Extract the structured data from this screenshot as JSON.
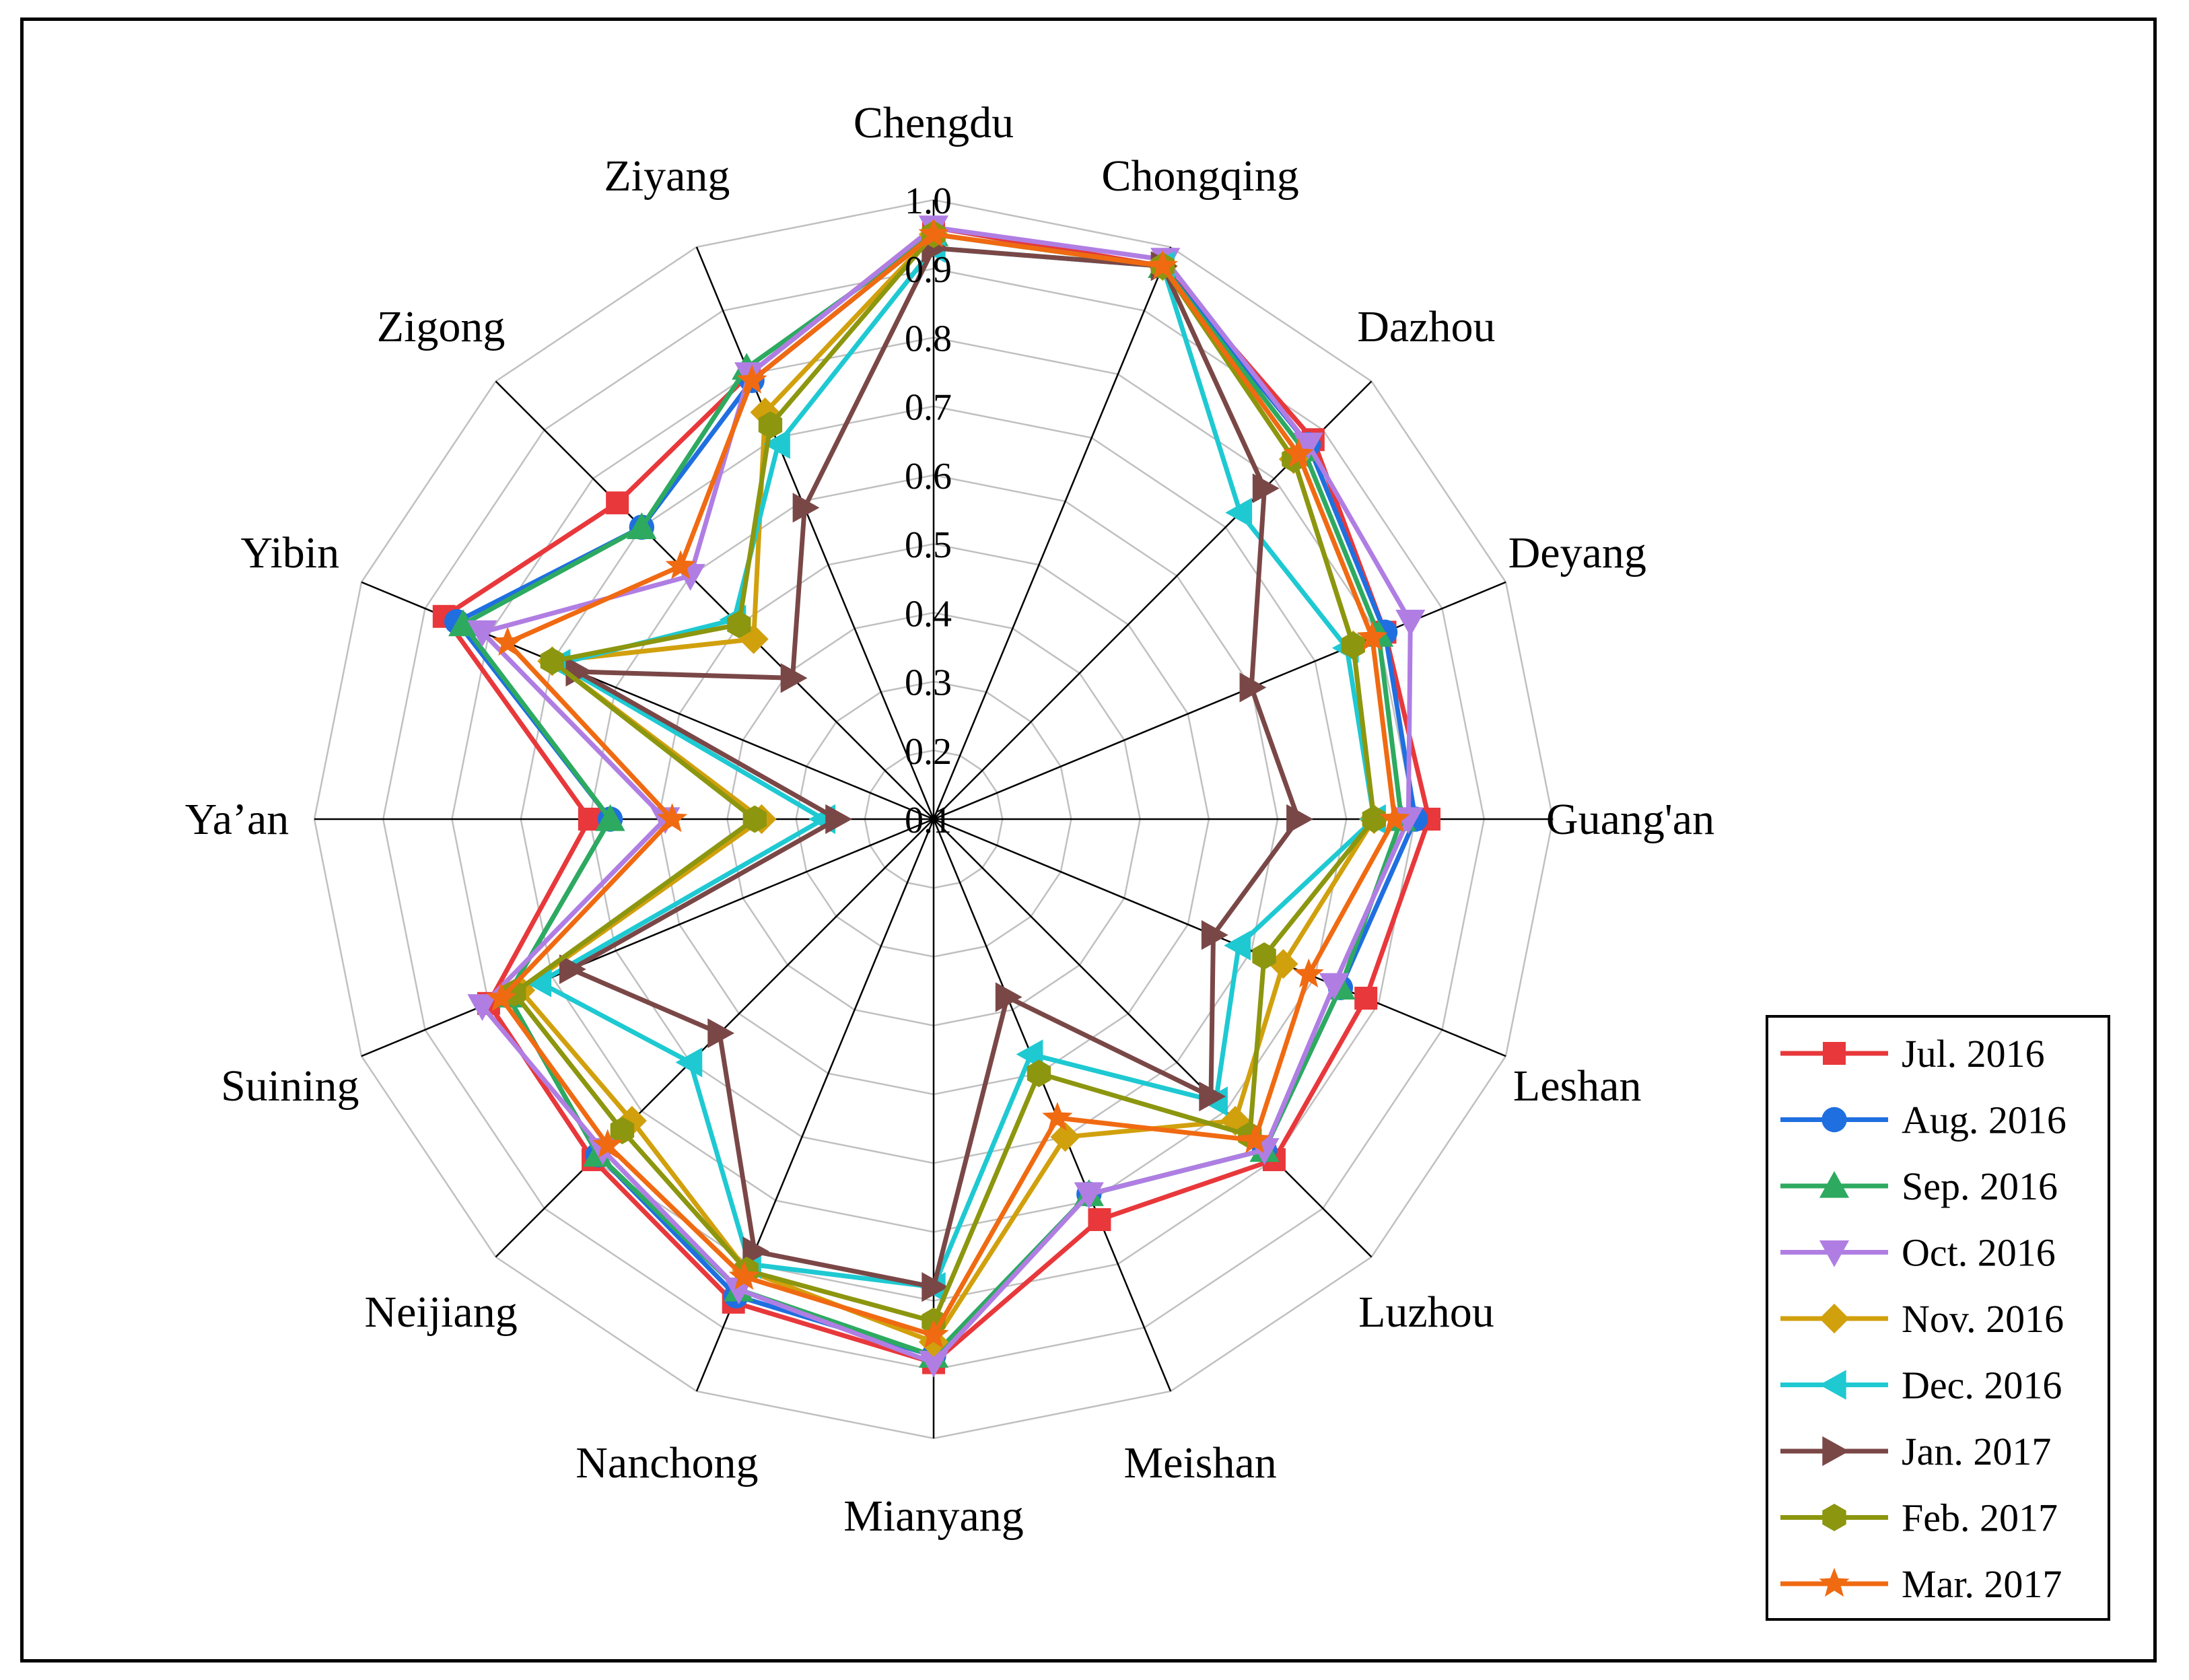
{
  "chart_data": {
    "type": "radar",
    "title": "",
    "categories": [
      "Chengdu",
      "Chongqing",
      "Dazhou",
      "Deyang",
      "Guang'an",
      "Leshan",
      "Luzhou",
      "Meishan",
      "Mianyang",
      "Nanchong",
      "Neijiang",
      "Suining",
      "Ya’an",
      "Yibin",
      "Zigong",
      "Ziyang"
    ],
    "rlim": [
      0.1,
      1.0
    ],
    "ticks": [
      0.1,
      0.2,
      0.3,
      0.4,
      0.5,
      0.6,
      0.7,
      0.8,
      0.9,
      1.0
    ],
    "tick_labels": [
      "0.1",
      "0.2",
      "0.3",
      "0.4",
      "0.5",
      "0.6",
      "0.7",
      "0.8",
      "0.9",
      "1.0"
    ],
    "legend_position": "bottom-right",
    "series": [
      {
        "name": "Jul. 2016",
        "color": "#e8383b",
        "marker": "square",
        "values": [
          0.96,
          0.97,
          0.88,
          0.81,
          0.82,
          0.78,
          0.8,
          0.73,
          0.89,
          0.86,
          0.8,
          0.8,
          0.6,
          0.87,
          0.75,
          0.8
        ]
      },
      {
        "name": "Aug. 2016",
        "color": "#1f6fe0",
        "marker": "circle",
        "values": [
          0.95,
          0.97,
          0.87,
          0.81,
          0.8,
          0.74,
          0.78,
          0.69,
          0.88,
          0.85,
          0.79,
          0.77,
          0.57,
          0.85,
          0.7,
          0.79
        ]
      },
      {
        "name": "Sep. 2016",
        "color": "#2daa60",
        "marker": "triangle-up",
        "values": [
          0.95,
          0.97,
          0.86,
          0.8,
          0.78,
          0.74,
          0.78,
          0.69,
          0.88,
          0.84,
          0.79,
          0.77,
          0.57,
          0.84,
          0.7,
          0.81
        ]
      },
      {
        "name": "Oct. 2016",
        "color": "#b07ee3",
        "marker": "triangle-down",
        "values": [
          0.96,
          0.98,
          0.87,
          0.85,
          0.79,
          0.73,
          0.78,
          0.69,
          0.89,
          0.84,
          0.78,
          0.81,
          0.49,
          0.81,
          0.6,
          0.8
        ]
      },
      {
        "name": "Nov. 2016",
        "color": "#d1a00d",
        "marker": "diamond",
        "values": [
          0.95,
          0.97,
          0.84,
          0.76,
          0.74,
          0.65,
          0.72,
          0.6,
          0.86,
          0.81,
          0.72,
          0.75,
          0.35,
          0.7,
          0.47,
          0.74
        ]
      },
      {
        "name": "Dec. 2016",
        "color": "#1ec9d2",
        "marker": "triangle-left",
        "values": [
          0.93,
          0.97,
          0.73,
          0.75,
          0.74,
          0.58,
          0.68,
          0.47,
          0.78,
          0.8,
          0.6,
          0.72,
          0.26,
          0.69,
          0.51,
          0.69
        ]
      },
      {
        "name": "Jan. 2017",
        "color": "#7a4747",
        "marker": "triangle-right",
        "values": [
          0.93,
          0.97,
          0.78,
          0.6,
          0.63,
          0.54,
          0.67,
          0.38,
          0.78,
          0.78,
          0.54,
          0.67,
          0.24,
          0.66,
          0.39,
          0.59
        ]
      },
      {
        "name": "Feb. 2017",
        "color": "#8c960f",
        "marker": "hexagon",
        "values": [
          0.95,
          0.97,
          0.84,
          0.76,
          0.74,
          0.62,
          0.75,
          0.5,
          0.83,
          0.81,
          0.74,
          0.76,
          0.36,
          0.7,
          0.5,
          0.72
        ]
      },
      {
        "name": "Mar. 2017",
        "color": "#f06a12",
        "marker": "star",
        "values": [
          0.95,
          0.97,
          0.85,
          0.79,
          0.77,
          0.69,
          0.76,
          0.57,
          0.85,
          0.82,
          0.77,
          0.78,
          0.48,
          0.77,
          0.62,
          0.79
        ]
      }
    ]
  }
}
